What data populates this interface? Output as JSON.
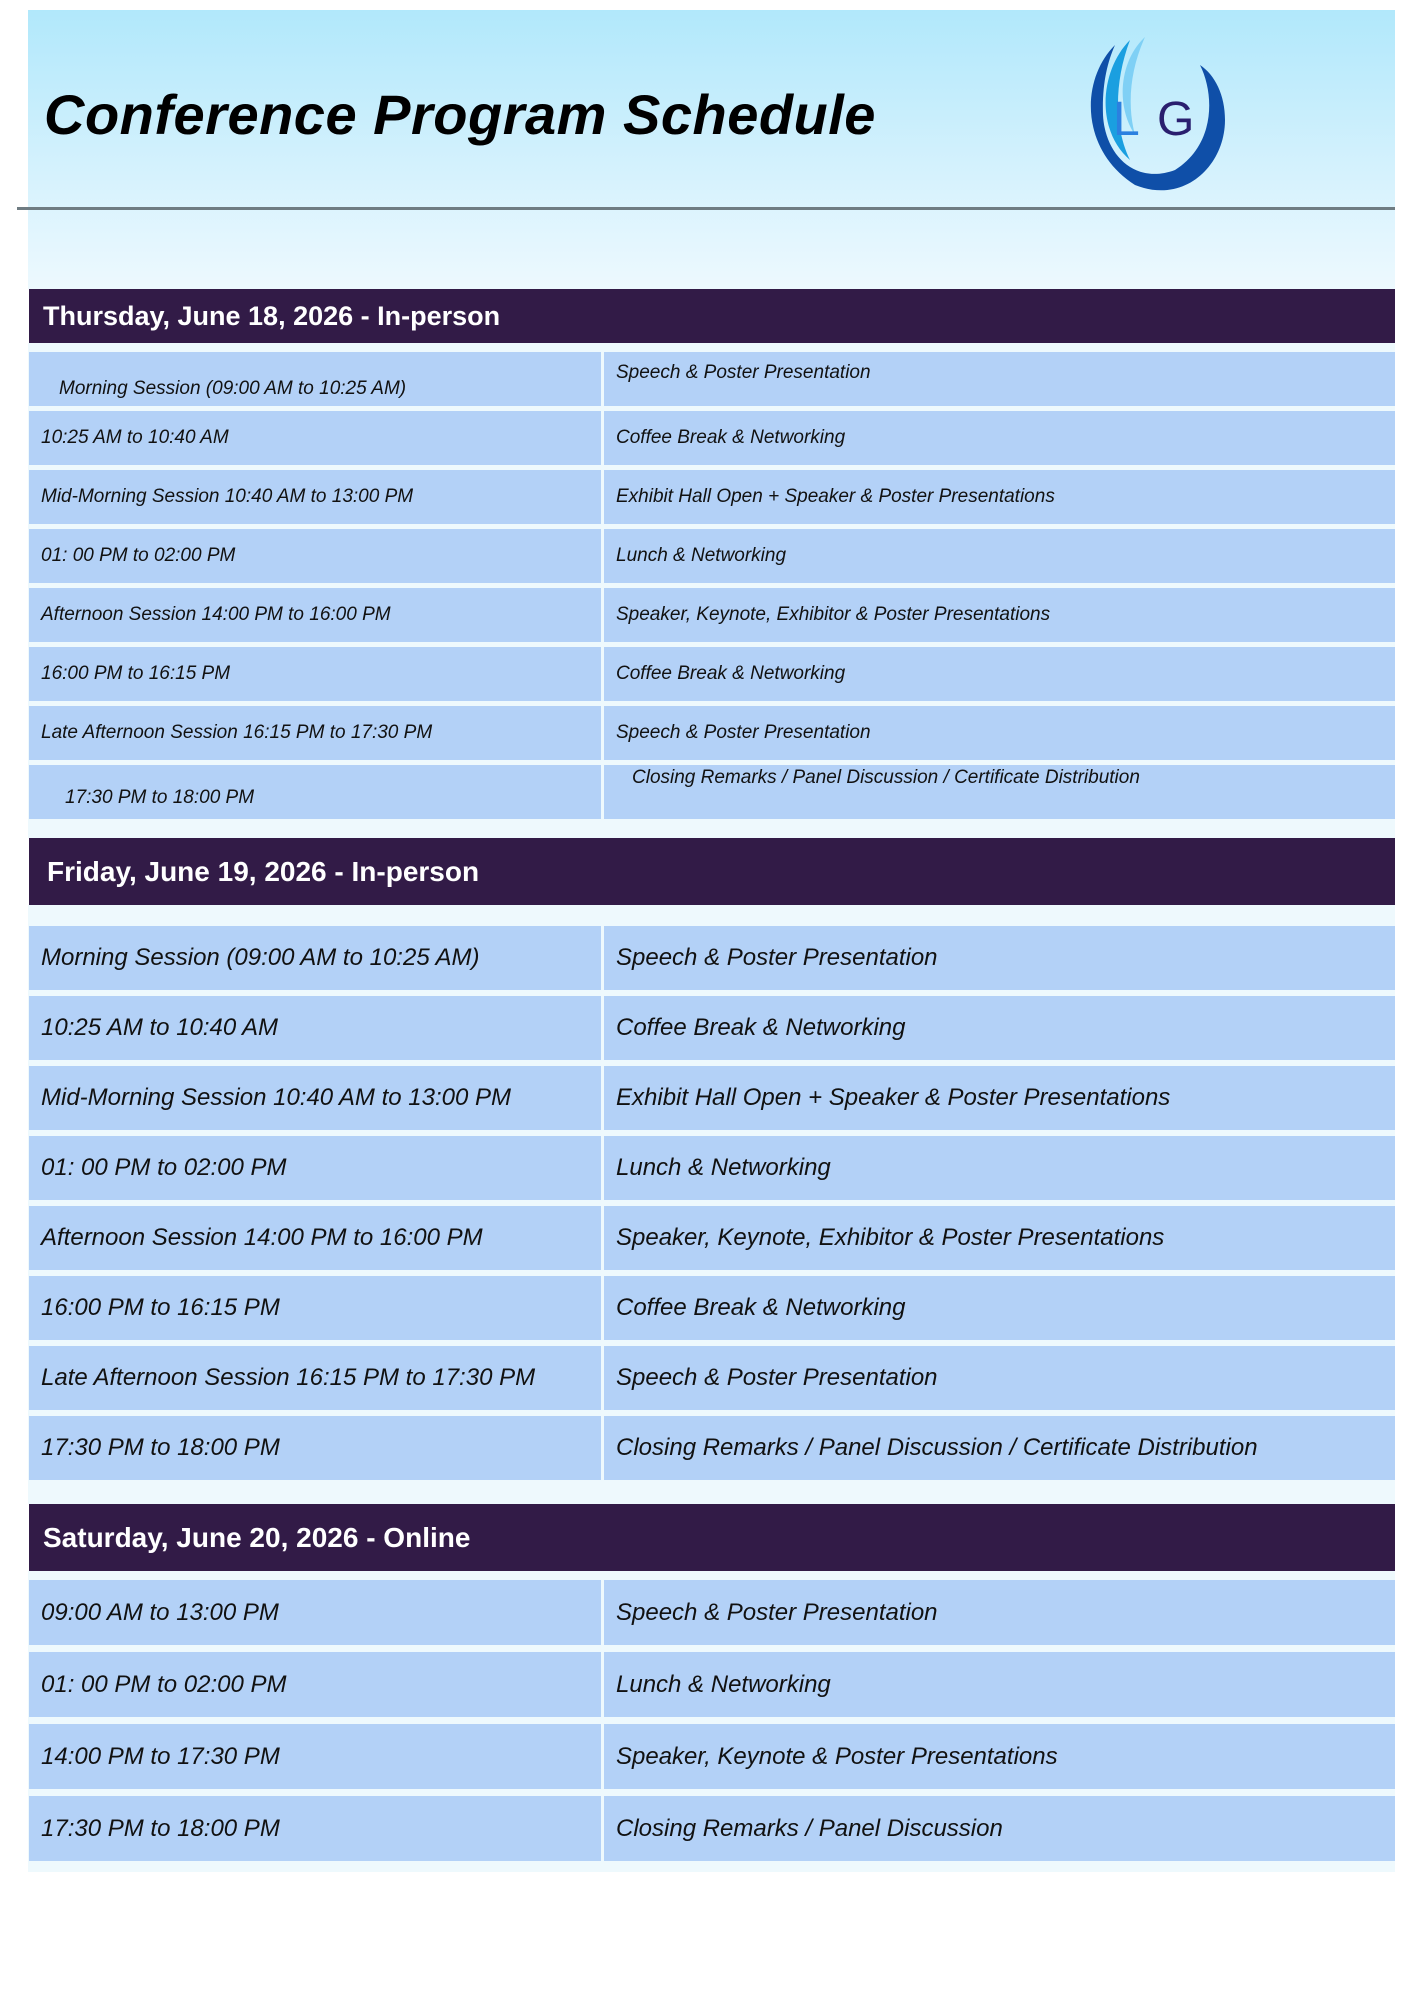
{
  "title": "Conference Program Schedule",
  "logo": {
    "text": "LG",
    "colors": [
      "#1a9fe0",
      "#0f4fa8",
      "#2a1f6e"
    ]
  },
  "colors": {
    "header_band": "#321b47",
    "row_fill": "#b3d1f7",
    "hero_top": "#b1e8fb"
  },
  "days": [
    {
      "heading": "Thursday, June 18, 2026 - In-person",
      "rows": [
        {
          "time": "Morning Session (09:00 AM to 10:25 AM)",
          "activity": "Speech & Poster Presentation"
        },
        {
          "time": "10:25 AM to 10:40 AM",
          "activity": "Coffee Break & Networking"
        },
        {
          "time": "Mid-Morning Session 10:40 AM to 13:00 PM",
          "activity": "Exhibit Hall Open + Speaker & Poster Presentations"
        },
        {
          "time": "01: 00 PM to 02:00 PM",
          "activity": "Lunch & Networking"
        },
        {
          "time": "Afternoon Session 14:00 PM to 16:00 PM",
          "activity": "Speaker, Keynote, Exhibitor & Poster Presentations"
        },
        {
          "time": "16:00 PM to 16:15 PM",
          "activity": "Coffee Break & Networking"
        },
        {
          "time": "Late Afternoon Session 16:15 PM to 17:30 PM",
          "activity": "Speech & Poster Presentation"
        },
        {
          "time": "17:30 PM to 18:00 PM",
          "activity": "Closing Remarks / Panel Discussion / Certificate Distribution"
        }
      ]
    },
    {
      "heading": "Friday, June 19, 2026 - In-person",
      "rows": [
        {
          "time": "Morning Session (09:00 AM to 10:25 AM)",
          "activity": "Speech & Poster Presentation"
        },
        {
          "time": "10:25 AM to 10:40 AM",
          "activity": "Coffee Break & Networking"
        },
        {
          "time": "Mid-Morning Session 10:40 AM to 13:00 PM",
          "activity": "Exhibit Hall Open + Speaker & Poster Presentations"
        },
        {
          "time": "01: 00 PM to 02:00 PM",
          "activity": "Lunch & Networking"
        },
        {
          "time": "Afternoon Session 14:00 PM to 16:00 PM",
          "activity": "Speaker, Keynote, Exhibitor & Poster Presentations"
        },
        {
          "time": "16:00 PM to 16:15 PM",
          "activity": "Coffee Break & Networking"
        },
        {
          "time": "Late Afternoon Session 16:15 PM to 17:30 PM",
          "activity": "Speech & Poster Presentation"
        },
        {
          "time": "17:30 PM to 18:00 PM",
          "activity": "Closing Remarks / Panel Discussion / Certificate Distribution"
        }
      ]
    },
    {
      "heading": "Saturday, June 20, 2026 - Online",
      "rows": [
        {
          "time": "09:00 AM to 13:00 PM",
          "activity": "Speech & Poster Presentation"
        },
        {
          "time": "01: 00 PM to 02:00 PM",
          "activity": "Lunch & Networking"
        },
        {
          "time": "14:00 PM to 17:30 PM",
          "activity": "Speaker, Keynote & Poster Presentations"
        },
        {
          "time": "17:30 PM to 18:00 PM",
          "activity": "Closing Remarks / Panel Discussion"
        }
      ]
    }
  ]
}
